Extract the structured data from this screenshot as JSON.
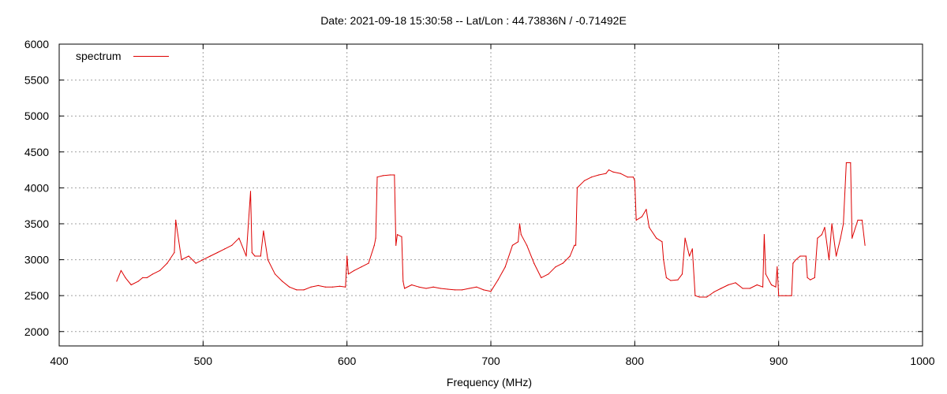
{
  "chart_data": {
    "type": "line",
    "title": "Date: 2021-09-18 15:30:58  --  Lat/Lon : 44.73836N / -0.71492E",
    "xlabel": "Frequency (MHz)",
    "ylabel": "",
    "xlim": [
      400,
      1000
    ],
    "ylim": [
      1800,
      6000
    ],
    "xticks": [
      400,
      500,
      600,
      700,
      800,
      900,
      1000
    ],
    "yticks": [
      2000,
      2500,
      3000,
      3500,
      4000,
      4500,
      5000,
      5500,
      6000
    ],
    "grid": true,
    "legend_position": "top-left",
    "series": [
      {
        "name": "spectrum",
        "color": "#dd0000",
        "x": [
          440,
          443,
          446,
          450,
          455,
          458,
          461,
          465,
          470,
          475,
          480,
          481,
          485,
          490,
          495,
          500,
          505,
          510,
          515,
          520,
          525,
          530,
          533,
          534,
          536,
          540,
          542,
          545,
          550,
          555,
          560,
          565,
          570,
          575,
          580,
          585,
          590,
          595,
          599,
          600,
          601,
          605,
          610,
          615,
          619,
          620,
          621,
          625,
          630,
          633,
          634,
          635,
          638,
          639,
          640,
          645,
          650,
          655,
          660,
          665,
          670,
          675,
          680,
          685,
          690,
          695,
          700,
          705,
          710,
          715,
          719,
          720,
          721,
          725,
          730,
          735,
          740,
          745,
          750,
          755,
          758,
          759,
          760,
          765,
          770,
          775,
          780,
          782,
          785,
          790,
          795,
          799,
          800,
          801,
          805,
          808,
          810,
          815,
          819,
          820,
          822,
          825,
          830,
          833,
          835,
          838,
          840,
          842,
          845,
          850,
          855,
          860,
          865,
          870,
          875,
          880,
          885,
          889,
          890,
          891,
          895,
          898,
          899,
          900,
          905,
          909,
          910,
          912,
          915,
          919,
          920,
          922,
          925,
          927,
          930,
          932,
          935,
          937,
          940,
          943,
          945,
          947,
          950,
          951,
          955,
          958,
          960
        ],
        "y": [
          2700,
          2850,
          2750,
          2650,
          2700,
          2750,
          2750,
          2800,
          2850,
          2950,
          3100,
          3550,
          3000,
          3050,
          2950,
          3000,
          3050,
          3100,
          3150,
          3200,
          3300,
          3050,
          3950,
          3100,
          3050,
          3050,
          3400,
          3000,
          2800,
          2700,
          2620,
          2580,
          2580,
          2620,
          2640,
          2620,
          2620,
          2630,
          2620,
          3050,
          2800,
          2850,
          2900,
          2950,
          3200,
          3300,
          4150,
          4170,
          4180,
          4180,
          3200,
          3350,
          3320,
          2700,
          2600,
          2650,
          2620,
          2600,
          2620,
          2600,
          2590,
          2580,
          2580,
          2600,
          2620,
          2580,
          2560,
          2720,
          2900,
          3200,
          3250,
          3500,
          3350,
          3200,
          2950,
          2750,
          2800,
          2900,
          2950,
          3050,
          3200,
          3200,
          4000,
          4100,
          4150,
          4180,
          4200,
          4250,
          4220,
          4200,
          4150,
          4150,
          4100,
          3550,
          3600,
          3700,
          3450,
          3300,
          3250,
          3000,
          2750,
          2710,
          2720,
          2800,
          3300,
          3050,
          3150,
          2500,
          2480,
          2480,
          2550,
          2600,
          2650,
          2680,
          2600,
          2600,
          2650,
          2620,
          3350,
          2800,
          2650,
          2620,
          2900,
          2500,
          2500,
          2500,
          2950,
          3000,
          3050,
          3050,
          2750,
          2720,
          2750,
          3300,
          3350,
          3450,
          3000,
          3500,
          3050,
          3300,
          3500,
          4350,
          4350,
          3300,
          3550,
          3550,
          3200
        ]
      }
    ]
  }
}
